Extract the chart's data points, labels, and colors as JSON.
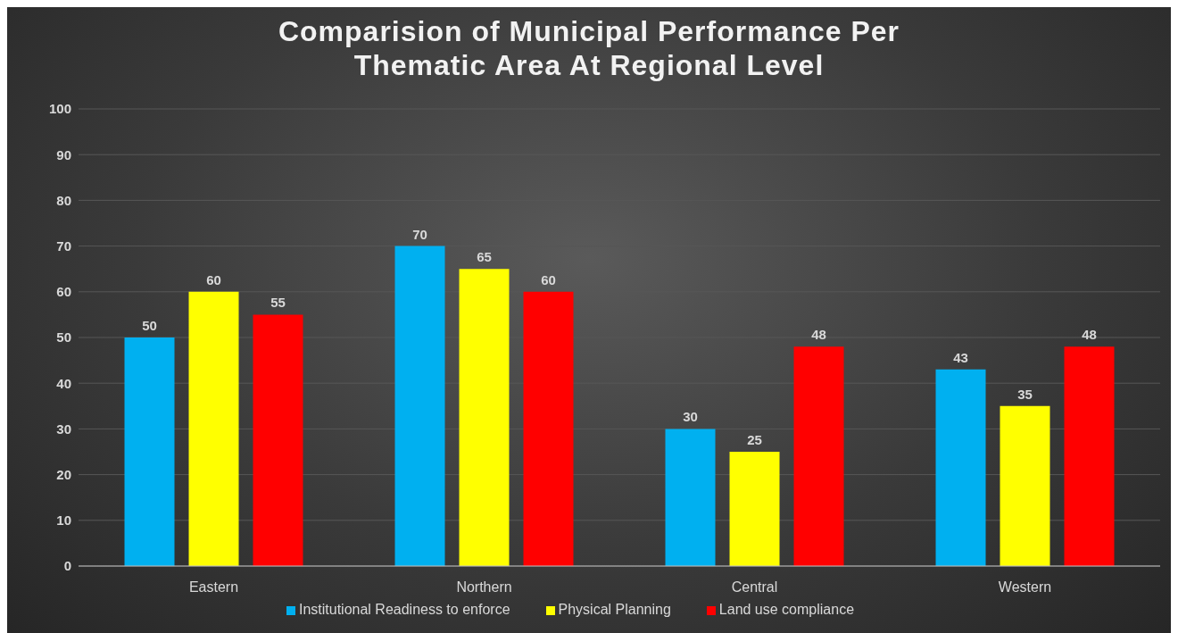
{
  "chart_data": {
    "type": "bar",
    "title": "Comparision of Municipal Performance Per Thematic Area At Regional Level",
    "categories": [
      "Eastern",
      "Northern",
      "Central",
      "Western"
    ],
    "series": [
      {
        "name": "Institutional Readiness to enforce",
        "color": "#00b0f0",
        "values": [
          50,
          70,
          30,
          43
        ]
      },
      {
        "name": "Physical Planning",
        "color": "#ffff00",
        "values": [
          60,
          65,
          25,
          35
        ]
      },
      {
        "name": "Land use compliance",
        "color": "#ff0000",
        "values": [
          55,
          60,
          48,
          48
        ]
      }
    ],
    "ylim": [
      0,
      100
    ],
    "yticks": [
      0,
      10,
      20,
      30,
      40,
      50,
      60,
      70,
      80,
      90,
      100
    ],
    "grid": "y",
    "legend": "bottom",
    "data_labels": true
  }
}
